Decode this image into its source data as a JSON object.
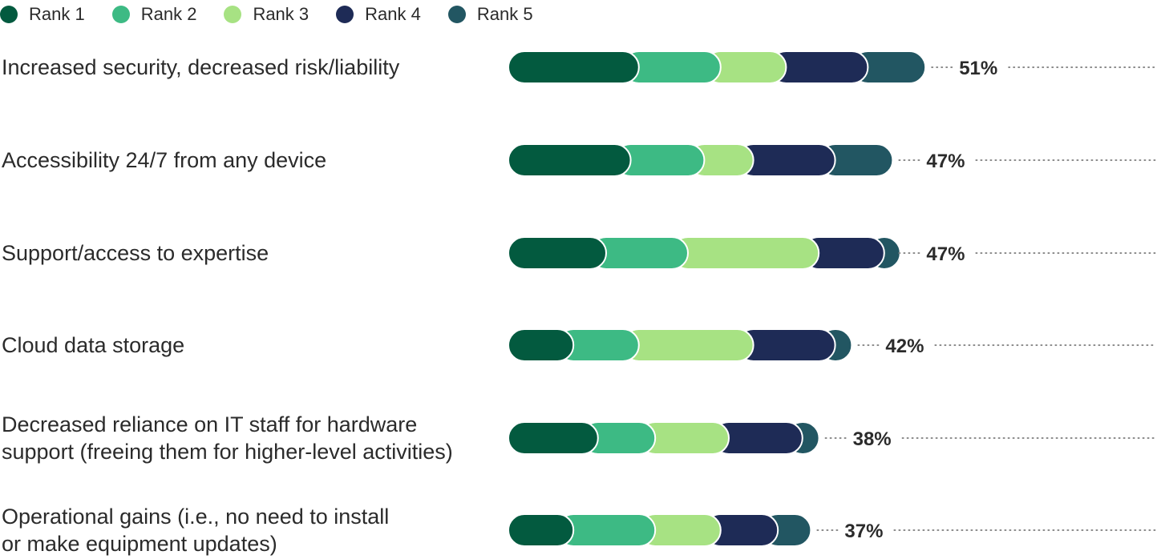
{
  "chart_data": {
    "type": "bar",
    "orientation": "horizontal",
    "stacked": true,
    "legend_position": "top-left",
    "grid": false,
    "categories": [
      [
        "Increased security, decreased risk/liability"
      ],
      [
        "Accessibility 24/7 from any device"
      ],
      [
        "Support/access to expertise"
      ],
      [
        "Cloud data storage"
      ],
      [
        "Decreased reliance on IT staff for hardware",
        "support (freeing them for higher-level activities)"
      ],
      [
        "Operational gains (i.e., no need to install",
        "or make equipment updates)"
      ]
    ],
    "totals": [
      "51%",
      "47%",
      "47%",
      "42%",
      "38%",
      "37%"
    ],
    "total_values": [
      51,
      47,
      47,
      42,
      38,
      37
    ],
    "series": [
      {
        "name": "Rank 1",
        "color": "#035a3f",
        "values": [
          14,
          13,
          10,
          6,
          9,
          6
        ]
      },
      {
        "name": "Rank 2",
        "color": "#3dba84",
        "values": [
          10,
          9,
          10,
          8,
          7,
          10
        ]
      },
      {
        "name": "Rank 3",
        "color": "#a7e283",
        "values": [
          8,
          6,
          16,
          14,
          9,
          8
        ]
      },
      {
        "name": "Rank 4",
        "color": "#1e2b56",
        "values": [
          10,
          10,
          8,
          10,
          9,
          7
        ]
      },
      {
        "name": "Rank 5",
        "color": "#225662",
        "values": [
          9,
          9,
          3,
          4,
          4,
          6
        ]
      }
    ]
  }
}
